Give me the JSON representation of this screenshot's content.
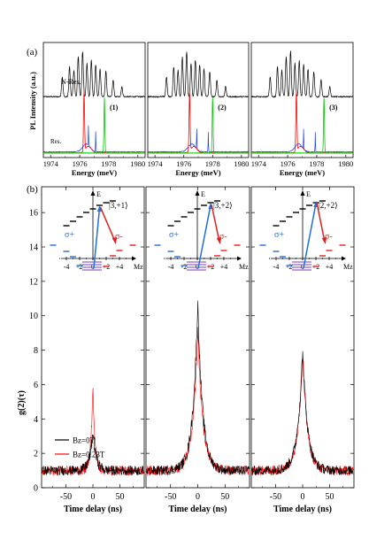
{
  "labels": {
    "panel_a": "(a)",
    "panel_b": "(b)"
  },
  "chart_data": [
    {
      "type": "line",
      "panel": "(a)",
      "ylabel": "PL Intensity (a.u.)",
      "xlabel": "Energy (meV)",
      "xlim": [
        1973.5,
        1980.5
      ],
      "xticks": [
        1974,
        1976,
        1978,
        1980
      ],
      "trace_labels": [
        "N-Res.",
        "Res."
      ],
      "nres_peaks": [
        {
          "x": 1974.8,
          "h": 0.3
        },
        {
          "x": 1975.3,
          "h": 0.45
        },
        {
          "x": 1975.6,
          "h": 0.4
        },
        {
          "x": 1975.9,
          "h": 0.6
        },
        {
          "x": 1976.2,
          "h": 0.68
        },
        {
          "x": 1976.5,
          "h": 0.5
        },
        {
          "x": 1976.8,
          "h": 0.55
        },
        {
          "x": 1977.1,
          "h": 0.48
        },
        {
          "x": 1977.4,
          "h": 0.42
        },
        {
          "x": 1977.8,
          "h": 0.38
        },
        {
          "x": 1978.3,
          "h": 0.25
        },
        {
          "x": 1978.9,
          "h": 0.15
        }
      ],
      "subplots": [
        {
          "label": "(1)",
          "red_peak": 1976.3,
          "green_peak": 1977.7,
          "blue_peaks": [
            1976.6,
            1977.1
          ]
        },
        {
          "label": "(2)",
          "red_peak": 1976.4,
          "green_peak": 1978.0,
          "blue_peaks": [
            1976.9,
            1977.7
          ]
        },
        {
          "label": "(3)",
          "red_peak": 1976.6,
          "green_peak": 1978.5,
          "blue_peaks": [
            1977.1,
            1977.9
          ]
        }
      ],
      "colors": {
        "nres": "#000000",
        "red": "#ff0000",
        "green": "#00cc00",
        "blue": "#1f3fff",
        "orange": "#ff8c00"
      }
    },
    {
      "type": "line",
      "panel": "(b)",
      "ylabel": "g(2)(τ)",
      "xlabel": "Time delay (ns)",
      "xlim": [
        -95,
        95
      ],
      "ylim": [
        0,
        17.5
      ],
      "xticks": [
        -50,
        0,
        50
      ],
      "yticks": [
        0,
        2,
        4,
        6,
        8,
        10,
        12,
        14,
        16
      ],
      "legend": [
        "Bz=0T",
        "Bz=0.23T"
      ],
      "series_colors": {
        "Bz=0T": "#000000",
        "Bz=0.23T": "#ff0000"
      },
      "subplots": [
        {
          "peak_black": 3.3,
          "peak_red": 5.8,
          "baseline": 1.0,
          "state_label": "|3,+1⟩"
        },
        {
          "peak_black": 10.8,
          "peak_red": 9.2,
          "baseline": 1.0,
          "state_label": "|3,+2⟩"
        },
        {
          "peak_black": 8.1,
          "peak_red": 7.6,
          "baseline": 1.0,
          "state_label": "|2,+2⟩"
        }
      ],
      "inset": {
        "axis_label_y": "E",
        "axis_label_x": "Mz",
        "xticks": [
          -4,
          -2,
          0,
          2,
          4
        ],
        "xtick_labels": [
          "-4",
          "-2",
          "0",
          "+2",
          "+4"
        ],
        "sigma_plus": "σ+",
        "sigma_minus": "σ-",
        "colors": {
          "upper": "#000000",
          "left": "#1f6fe0",
          "right": "#e02020",
          "ground": "#7a3fb0",
          "blue_arrow": "#1f6fe0",
          "red_arrow": "#e02020"
        }
      }
    }
  ]
}
